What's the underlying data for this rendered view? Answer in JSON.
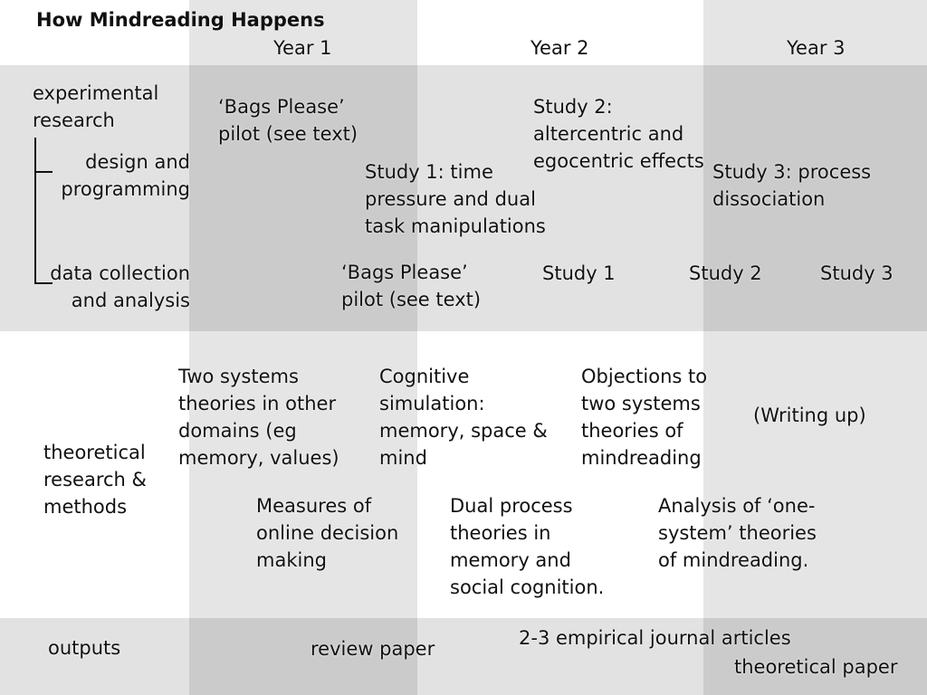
{
  "title": "How Mindreading Happens",
  "years": [
    "Year 1",
    "Year 2",
    "Year 3"
  ],
  "experimental": {
    "label": "experimental\nresearch",
    "design_label": "design and\nprogramming",
    "data_label": "data collection\nand analysis",
    "design_items": [
      "‘Bags Please’\npilot (see text)",
      "Study 1: time\npressure and dual\ntask manipulations",
      "Study 2:\naltercentric and\negocentric effects",
      "Study 3: process\ndissociation"
    ],
    "data_items": [
      "‘Bags Please’\npilot (see text)",
      "Study 1",
      "Study 2",
      "Study 3"
    ]
  },
  "theoretical": {
    "label": "theoretical\nresearch &\nmethods",
    "items": [
      "Two systems\ntheories in other\ndomains (eg\nmemory, values)",
      "Cognitive\nsimulation:\nmemory, space &\nmind",
      "Objections to\ntwo systems\ntheories of\nmindreading",
      "(Writing up)",
      "Measures of\nonline decision\nmaking",
      "Dual process\ntheories in\nmemory and\nsocial cognition.",
      "Analysis of ‘one-\nsystem’ theories\nof mindreading."
    ]
  },
  "outputs": {
    "label": "outputs",
    "items": [
      "review paper",
      "2-3 empirical journal articles",
      "theoretical paper"
    ]
  }
}
